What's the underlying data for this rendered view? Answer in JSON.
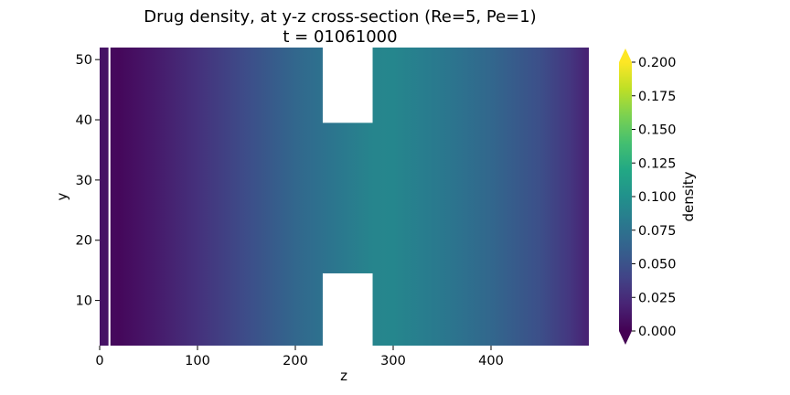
{
  "chart_data": {
    "type": "heatmap",
    "title": "Drug density, at y-z cross-section (Re=5, Pe=1)",
    "subtitle": "t = 01061000",
    "xlabel": "z",
    "ylabel": "y",
    "xlim": [
      0,
      500
    ],
    "ylim": [
      2.5,
      52
    ],
    "x_ticks": [
      "0",
      "100",
      "200",
      "300",
      "400"
    ],
    "y_ticks": [
      "10",
      "20",
      "30",
      "40",
      "50"
    ],
    "colorbar": {
      "label": "density",
      "colormap": "viridis",
      "range": [
        0.0,
        0.2
      ],
      "extend": "both",
      "ticks": [
        "0.000",
        "0.025",
        "0.050",
        "0.075",
        "0.100",
        "0.125",
        "0.150",
        "0.175",
        "0.200"
      ]
    },
    "density_profile_along_z": {
      "z": [
        0,
        9,
        10,
        20,
        50,
        100,
        150,
        200,
        230,
        280,
        300,
        350,
        400,
        450,
        480,
        500
      ],
      "density": [
        0.01,
        0.01,
        0.005,
        0.004,
        0.012,
        0.028,
        0.047,
        0.066,
        0.075,
        0.09,
        0.091,
        0.08,
        0.066,
        0.048,
        0.032,
        0.018
      ]
    },
    "masked_regions": [
      {
        "z": [
          9,
          11
        ],
        "y": [
          2.5,
          52
        ]
      },
      {
        "z": [
          228,
          279
        ],
        "y": [
          39.5,
          52
        ]
      },
      {
        "z": [
          228,
          279
        ],
        "y": [
          2.5,
          14.5
        ]
      }
    ]
  }
}
